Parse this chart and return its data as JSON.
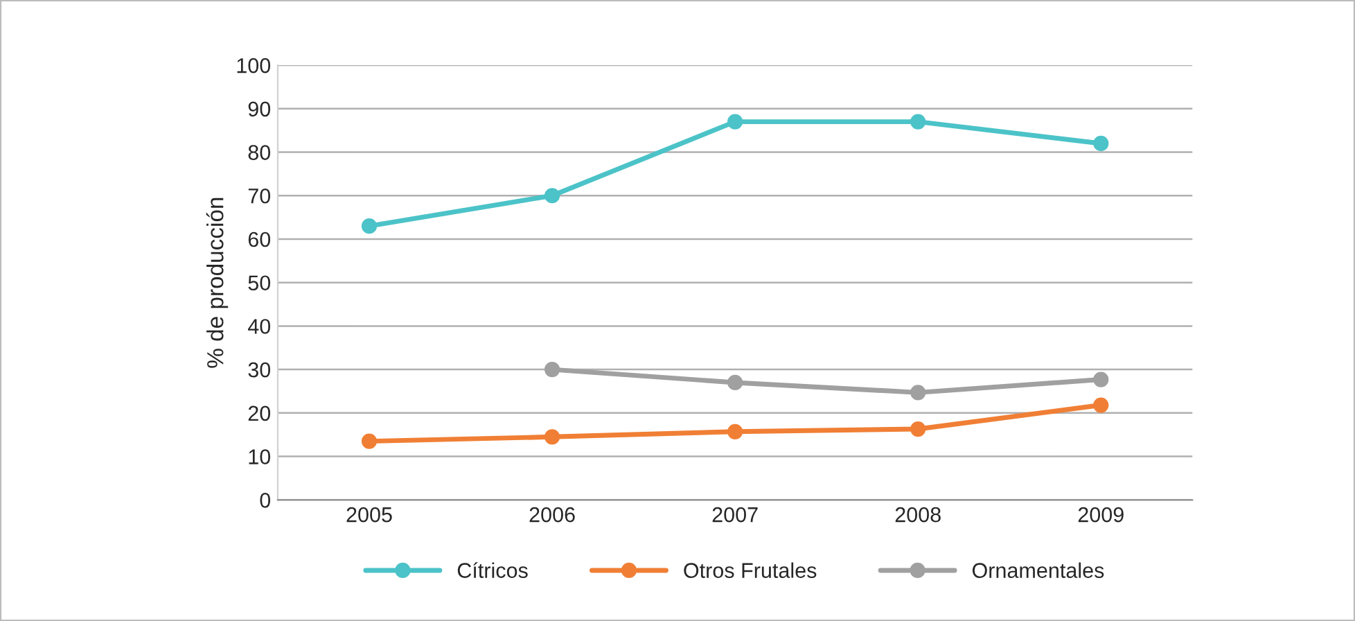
{
  "chart_data": {
    "type": "line",
    "ylabel": "% de producción",
    "categories": [
      "2005",
      "2006",
      "2007",
      "2008",
      "2009"
    ],
    "series": [
      {
        "name": "Cítricos",
        "color": "#4bc3c8",
        "values": [
          63,
          70,
          87,
          87,
          82
        ]
      },
      {
        "name": "Otros Frutales",
        "color": "#f07f35",
        "values": [
          13.5,
          14.5,
          15.7,
          16.3,
          21.8
        ]
      },
      {
        "name": "Ornamentales",
        "color": "#a0a0a0",
        "values": [
          null,
          30,
          27,
          24.7,
          27.7
        ]
      }
    ],
    "ylim": [
      0,
      100
    ],
    "yticks": [
      0,
      10,
      20,
      30,
      40,
      50,
      60,
      70,
      80,
      90,
      100
    ],
    "grid": "y",
    "legend": "bottom",
    "marker": "circle",
    "line_style": "solid"
  }
}
